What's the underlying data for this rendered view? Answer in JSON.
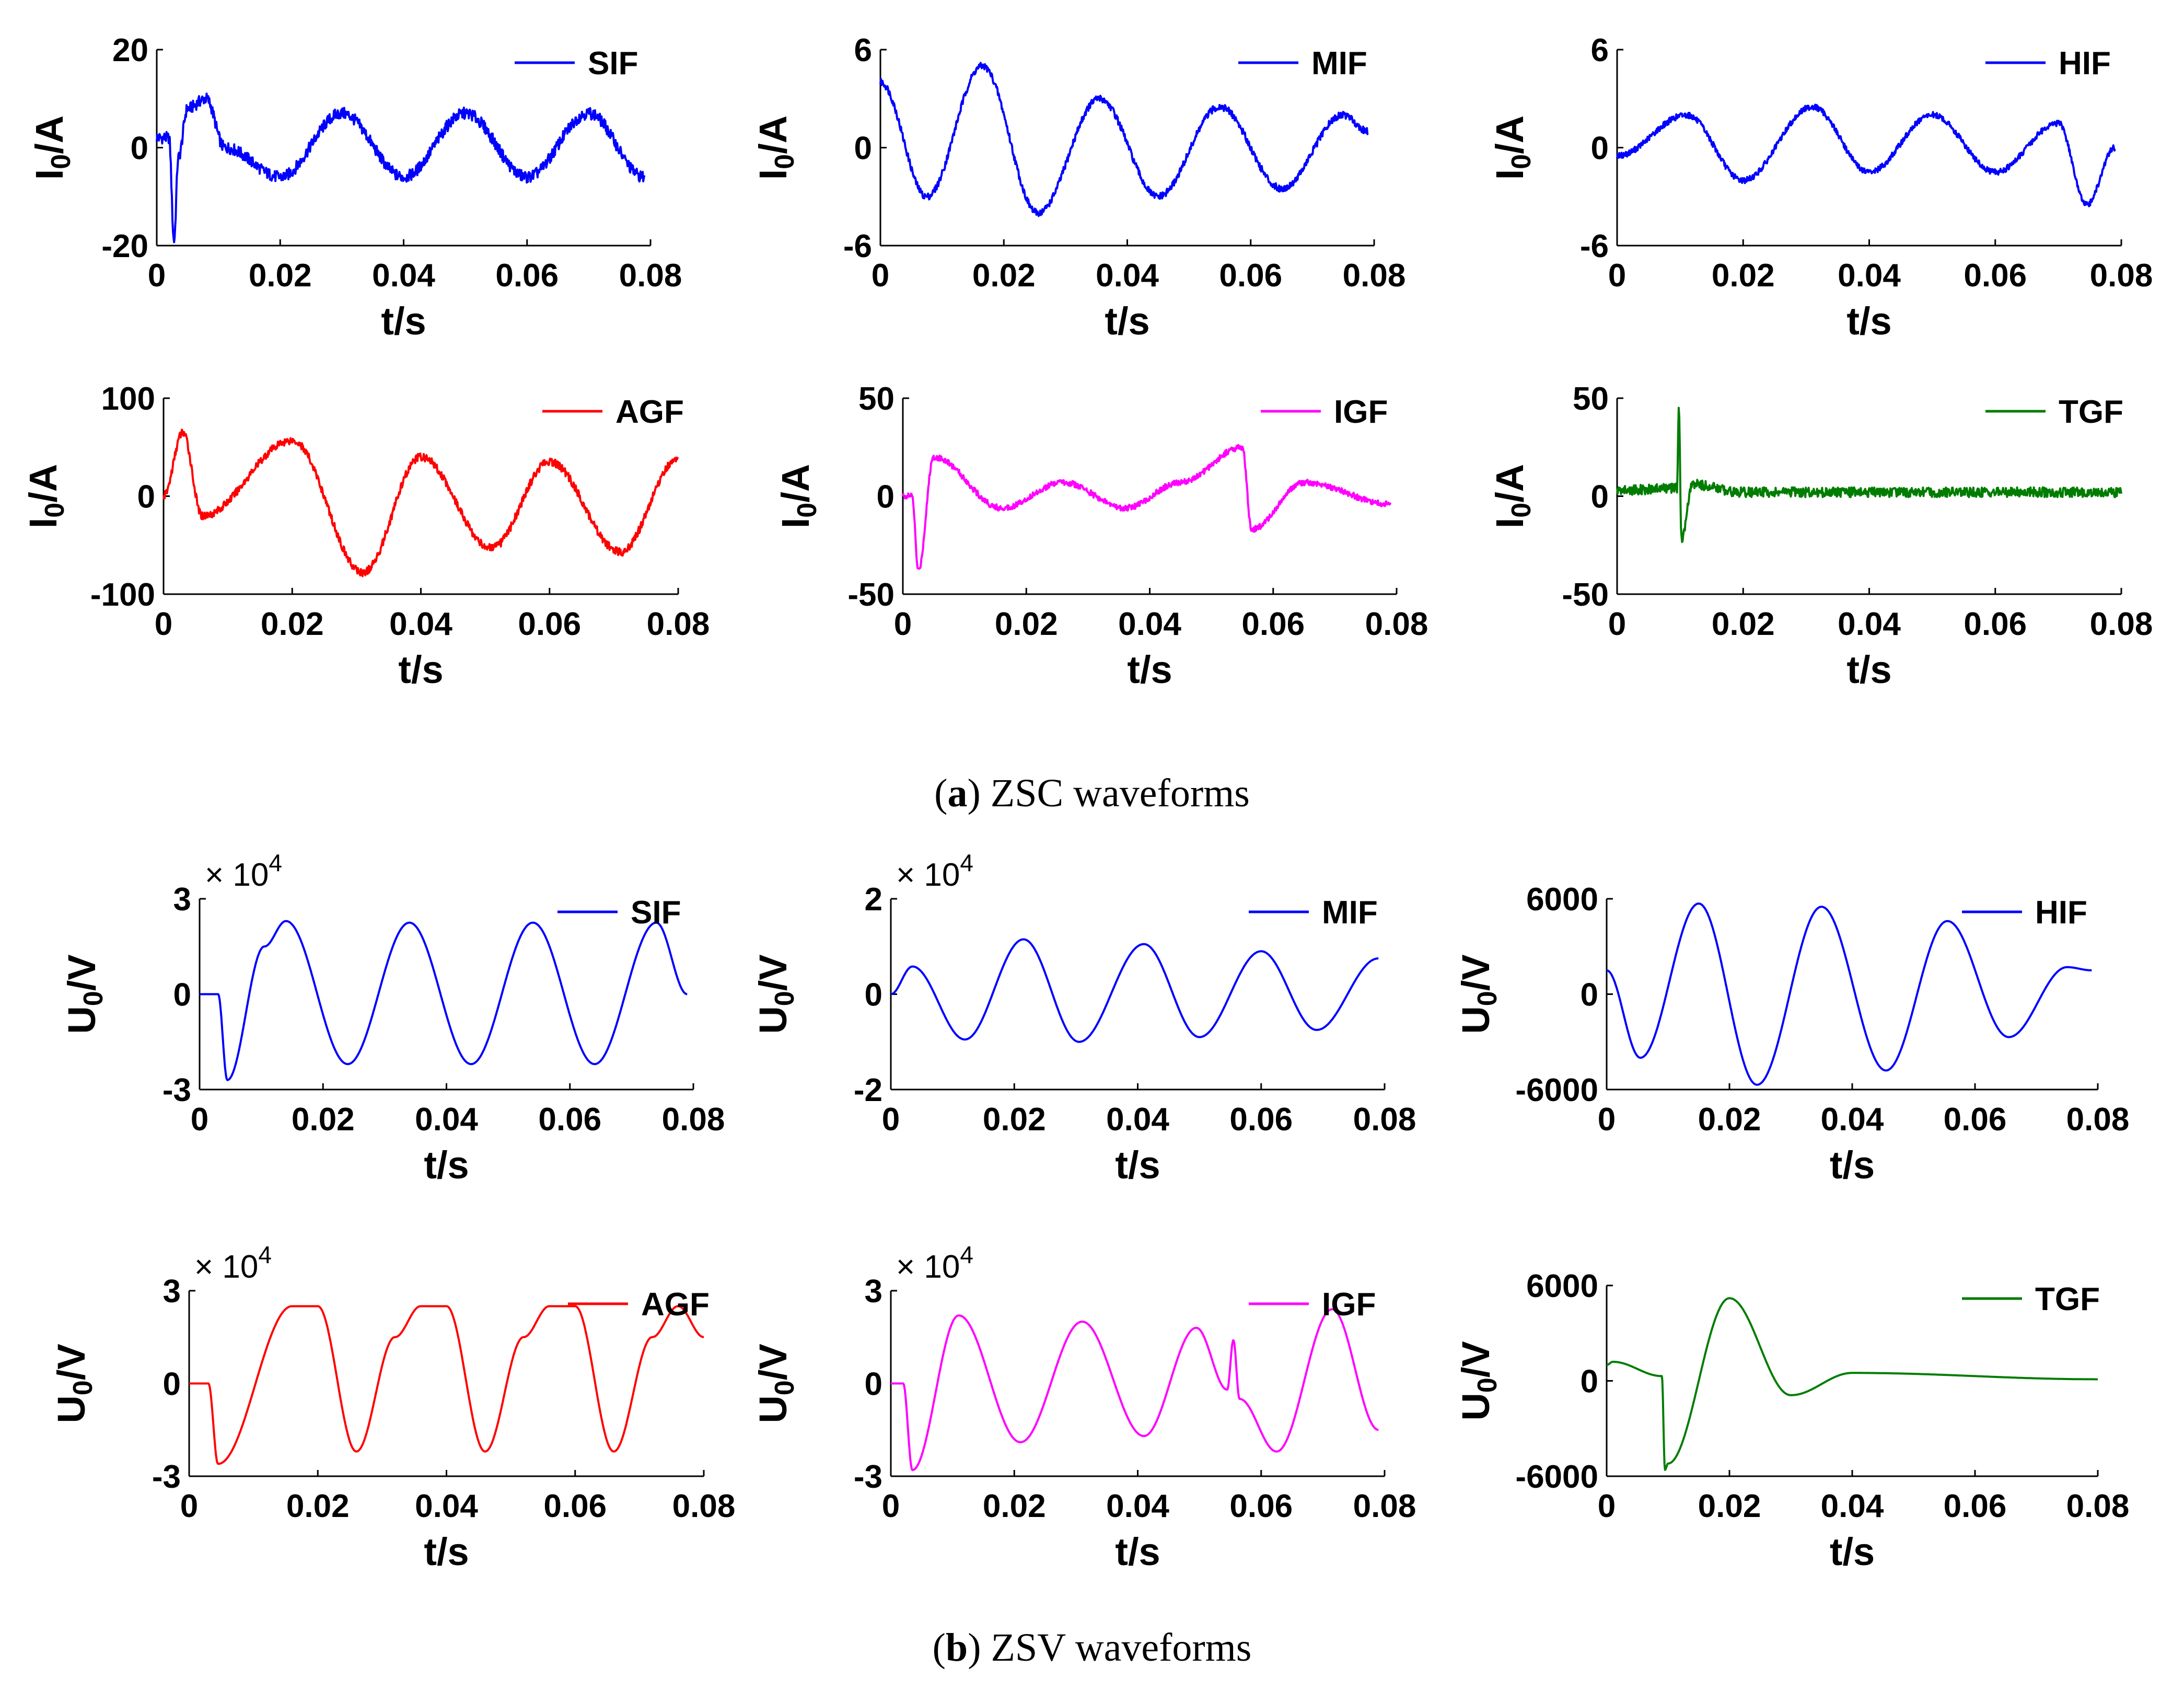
{
  "captions": {
    "a": {
      "letter": "a",
      "text": "ZSC waveforms"
    },
    "b": {
      "letter": "b",
      "text": "ZSV waveforms"
    }
  },
  "chart_data": [
    {
      "id": "zsc-sif",
      "type": "line",
      "title": "",
      "xlabel": "t/s",
      "ylabel": "I0/A",
      "ylim": [
        -20,
        20
      ],
      "yticks": [
        "20",
        "0",
        "-20"
      ],
      "xticks": [
        "0",
        "0.02",
        "0.04",
        "0.06",
        "0.08"
      ],
      "xlim": [
        0,
        0.08
      ],
      "legend": "top-right",
      "multiplier": "",
      "series": [
        {
          "name": "SIF",
          "color": "#0000ff",
          "shape": "sif_i",
          "noise": 1.2,
          "x": [
            0,
            0.002,
            0.0028,
            0.0035,
            0.005,
            0.008,
            0.011,
            0.02,
            0.03,
            0.04,
            0.05,
            0.06,
            0.07,
            0.079
          ],
          "y": [
            2,
            2,
            -19,
            -2,
            8,
            10,
            0,
            -6,
            7,
            -6,
            7,
            -6,
            7,
            -6
          ]
        }
      ]
    },
    {
      "id": "zsc-mif",
      "type": "line",
      "title": "",
      "xlabel": "t/s",
      "ylabel": "I0/A",
      "ylim": [
        -6,
        6
      ],
      "yticks": [
        "6",
        "0",
        "-6"
      ],
      "xticks": [
        "0",
        "0.02",
        "0.04",
        "0.06",
        "0.08"
      ],
      "xlim": [
        0,
        0.08
      ],
      "legend": "top-right",
      "multiplier": "",
      "series": [
        {
          "name": "MIF",
          "color": "#0000ff",
          "shape": "mif_i",
          "noise": 0.7,
          "x": [
            0,
            0.0075,
            0.0165,
            0.0255,
            0.0355,
            0.045,
            0.055,
            0.065,
            0.075,
            0.079
          ],
          "y": [
            4,
            -3,
            5,
            -4,
            3,
            -3,
            2.5,
            -2.5,
            2,
            1
          ]
        }
      ]
    },
    {
      "id": "zsc-hif",
      "type": "line",
      "title": "",
      "xlabel": "t/s",
      "ylabel": "I0/A",
      "ylim": [
        -6,
        6
      ],
      "yticks": [
        "6",
        "0",
        "-6"
      ],
      "xticks": [
        "0",
        "0.02",
        "0.04",
        "0.06",
        "0.08"
      ],
      "xlim": [
        0,
        0.08
      ],
      "legend": "top-right",
      "multiplier": "",
      "series": [
        {
          "name": "HIF",
          "color": "#0000ff",
          "shape": "hif_i",
          "noise": 0.6,
          "x": [
            0,
            0.011,
            0.02,
            0.031,
            0.04,
            0.05,
            0.06,
            0.07,
            0.0745,
            0.079
          ],
          "y": [
            -0.5,
            2,
            -2,
            2.5,
            -1.5,
            2,
            -1.5,
            1.5,
            -3.5,
            0
          ]
        }
      ]
    },
    {
      "id": "zsc-agf",
      "type": "line",
      "title": "",
      "xlabel": "t/s",
      "ylabel": "I0/A",
      "ylim": [
        -100,
        100
      ],
      "yticks": [
        "100",
        "0",
        "-100"
      ],
      "xticks": [
        "0",
        "0.02",
        "0.04",
        "0.06",
        "0.08"
      ],
      "xlim": [
        0,
        0.08
      ],
      "legend": "top-right",
      "multiplier": "",
      "series": [
        {
          "name": "AGF",
          "color": "#ff0000",
          "shape": "agf_i",
          "noise": 0.8,
          "x": [
            0,
            0.003,
            0.006,
            0.02,
            0.031,
            0.04,
            0.051,
            0.06,
            0.071,
            0.08
          ],
          "y": [
            0,
            65,
            -20,
            57,
            -78,
            40,
            -53,
            35,
            -57,
            38
          ]
        }
      ]
    },
    {
      "id": "zsc-igf",
      "type": "line",
      "title": "",
      "xlabel": "t/s",
      "ylabel": "I0/A",
      "ylim": [
        -50,
        50
      ],
      "yticks": [
        "50",
        "0",
        "-50"
      ],
      "xticks": [
        "0",
        "0.02",
        "0.04",
        "0.06",
        "0.08"
      ],
      "xlim": [
        0,
        0.08
      ],
      "legend": "top-right",
      "multiplier": "",
      "series": [
        {
          "name": "IGF",
          "color": "#ff00ff",
          "shape": "igf_i",
          "noise": 0.6,
          "x": [
            0,
            0.0015,
            0.0025,
            0.005,
            0.016,
            0.026,
            0.036,
            0.045,
            0.055,
            0.0565,
            0.065,
            0.079
          ],
          "y": [
            0,
            0,
            -38,
            20,
            -6,
            7,
            -6,
            7,
            25,
            -17,
            7,
            -4
          ]
        }
      ]
    },
    {
      "id": "zsc-tgf",
      "type": "line",
      "title": "",
      "xlabel": "t/s",
      "ylabel": "I0/A",
      "ylim": [
        -50,
        50
      ],
      "yticks": [
        "50",
        "0",
        "-50"
      ],
      "xticks": [
        "0",
        "0.02",
        "0.04",
        "0.06",
        "0.08"
      ],
      "xlim": [
        0,
        0.08
      ],
      "legend": "top-right",
      "multiplier": "",
      "series": [
        {
          "name": "TGF",
          "color": "#007d00",
          "shape": "tgf_i",
          "noise": 1.0,
          "x": [
            0,
            0.0095,
            0.0098,
            0.0102,
            0.012,
            0.02,
            0.08
          ],
          "y": [
            3,
            4,
            45,
            -22,
            6,
            2,
            2
          ]
        }
      ]
    },
    {
      "id": "zsv-sif",
      "type": "line",
      "title": "",
      "xlabel": "t/s",
      "ylabel": "U0/V",
      "ylim": [
        -30000,
        30000
      ],
      "yticks": [
        "3",
        "0",
        "-3"
      ],
      "xticks": [
        "0",
        "0.02",
        "0.04",
        "0.06",
        "0.08"
      ],
      "xlim": [
        0,
        0.08
      ],
      "legend": "top-right",
      "multiplier": "× 10^4",
      "series": [
        {
          "name": "SIF",
          "color": "#0000ff",
          "shape": "sif_v",
          "noise": 0,
          "x": [
            0,
            0.003,
            0.0045,
            0.0105,
            0.014,
            0.024,
            0.034,
            0.044,
            0.054,
            0.064,
            0.074,
            0.079
          ],
          "y": [
            0,
            0,
            -27000,
            15000,
            23000,
            -22000,
            22500,
            -22000,
            22500,
            -22000,
            22500,
            0
          ]
        }
      ]
    },
    {
      "id": "zsv-mif",
      "type": "line",
      "title": "",
      "xlabel": "t/s",
      "ylabel": "U0/V",
      "ylim": [
        -20000,
        20000
      ],
      "yticks": [
        "2",
        "0",
        "-2"
      ],
      "xticks": [
        "0",
        "0.02",
        "0.04",
        "0.06",
        "0.08"
      ],
      "xlim": [
        0,
        0.08
      ],
      "legend": "top-right",
      "multiplier": "× 10^4",
      "series": [
        {
          "name": "MIF",
          "color": "#0000ff",
          "shape": "mif_v",
          "noise": 0,
          "x": [
            0,
            0.0035,
            0.012,
            0.0215,
            0.0305,
            0.041,
            0.05,
            0.06,
            0.069,
            0.079
          ],
          "y": [
            0,
            5800,
            -9500,
            11500,
            -10000,
            10500,
            -9000,
            9000,
            -7500,
            7500
          ]
        }
      ]
    },
    {
      "id": "zsv-hif",
      "type": "line",
      "title": "",
      "xlabel": "t/s",
      "ylabel": "U0/V",
      "ylim": [
        -6000,
        6000
      ],
      "yticks": [
        "6000",
        "0",
        "-6000"
      ],
      "xticks": [
        "0",
        "0.02",
        "0.04",
        "0.06",
        "0.08"
      ],
      "xlim": [
        0,
        0.08
      ],
      "legend": "top-right",
      "multiplier": "",
      "series": [
        {
          "name": "HIF",
          "color": "#0000ff",
          "shape": "hif_v",
          "noise": 0,
          "x": [
            0,
            0.0055,
            0.015,
            0.0245,
            0.035,
            0.0455,
            0.0555,
            0.0655,
            0.075,
            0.079
          ],
          "y": [
            1500,
            -4000,
            5700,
            -5700,
            5500,
            -4800,
            4600,
            -2700,
            1700,
            1500
          ]
        }
      ]
    },
    {
      "id": "zsv-agf",
      "type": "line",
      "title": "",
      "xlabel": "t/s",
      "ylabel": "U0/V",
      "ylim": [
        -30000,
        30000
      ],
      "yticks": [
        "3",
        "0",
        "-3"
      ],
      "xticks": [
        "0",
        "0.02",
        "0.04",
        "0.06",
        "0.08"
      ],
      "xlim": [
        0,
        0.08
      ],
      "legend": "top-right",
      "multiplier": "× 10^4",
      "series": [
        {
          "name": "AGF",
          "color": "#ff0000",
          "shape": "agf_v",
          "noise": 0,
          "x": [
            0,
            0.003,
            0.0045,
            0.016,
            0.02,
            0.026,
            0.032,
            0.036,
            0.04,
            0.046,
            0.052,
            0.056,
            0.06,
            0.066,
            0.072,
            0.076,
            0.08
          ],
          "y": [
            0,
            0,
            -26000,
            25000,
            25000,
            -22000,
            15000,
            25000,
            25000,
            -22000,
            15000,
            25000,
            25000,
            -22000,
            15000,
            25000,
            15000
          ]
        }
      ]
    },
    {
      "id": "zsv-igf",
      "type": "line",
      "title": "",
      "xlabel": "t/s",
      "ylabel": "U0/V",
      "ylim": [
        -30000,
        30000
      ],
      "yticks": [
        "3",
        "0",
        "-3"
      ],
      "xticks": [
        "0",
        "0.02",
        "0.04",
        "0.06",
        "0.08"
      ],
      "xlim": [
        0,
        0.08
      ],
      "legend": "top-right",
      "multiplier": "× 10^4",
      "series": [
        {
          "name": "IGF",
          "color": "#ff00ff",
          "shape": "igf_v",
          "noise": 0,
          "x": [
            0,
            0.002,
            0.0035,
            0.011,
            0.021,
            0.031,
            0.041,
            0.0495,
            0.0545,
            0.0555,
            0.0565,
            0.0625,
            0.0715,
            0.079
          ],
          "y": [
            0,
            0,
            -28000,
            22000,
            -19000,
            20000,
            -17000,
            18000,
            -2000,
            14000,
            -5000,
            -22000,
            24000,
            -15000
          ]
        }
      ]
    },
    {
      "id": "zsv-tgf",
      "type": "line",
      "title": "",
      "xlabel": "t/s",
      "ylabel": "U0/V",
      "ylim": [
        -6000,
        6000
      ],
      "yticks": [
        "6000",
        "0",
        "-6000"
      ],
      "xticks": [
        "0",
        "0.02",
        "0.04",
        "0.06",
        "0.08"
      ],
      "xlim": [
        0,
        0.08
      ],
      "legend": "top-right",
      "multiplier": "",
      "series": [
        {
          "name": "TGF",
          "color": "#007d00",
          "shape": "tgf_v",
          "noise": 0,
          "x": [
            0,
            0.001,
            0.009,
            0.0095,
            0.01,
            0.02,
            0.03,
            0.04,
            0.08
          ],
          "y": [
            1000,
            1200,
            300,
            -5600,
            -5200,
            5200,
            -900,
            500,
            100
          ]
        }
      ]
    }
  ]
}
